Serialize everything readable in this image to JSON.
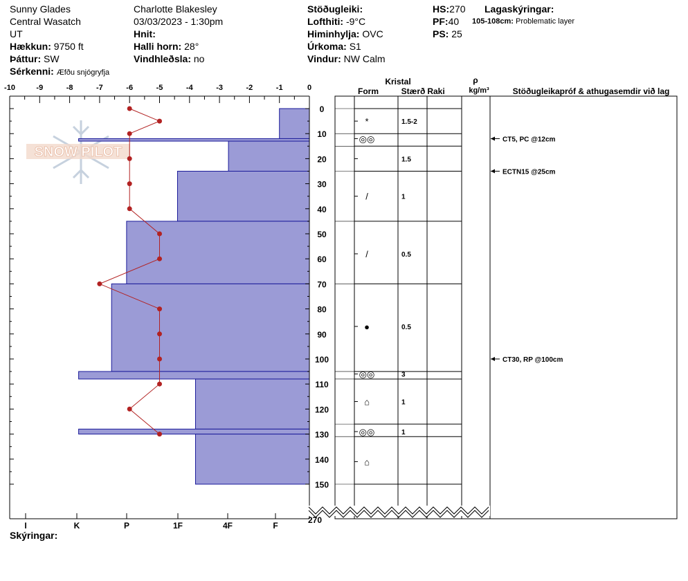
{
  "header": {
    "location": "Sunny Glades",
    "range": "Central Wasatch",
    "state": "UT",
    "elevation_label": "Hækkun:",
    "elevation_value": "9750 ft",
    "aspect_label": "Þáttur:",
    "aspect_value": "SW",
    "feature_label": "Sérkenni:",
    "feature_value": "Æfðu snjógryfja",
    "observer": "Charlotte Blakesley",
    "datetime": "03/03/2023 - 1:30pm",
    "coords_label": "Hnit:",
    "coords_value": "",
    "slope_label": "Halli horn:",
    "slope_value": "28°",
    "wind_loading_label": "Vindhleðsla:",
    "wind_loading_value": "no",
    "stability_label": "Stöðugleiki:",
    "stability_value": "",
    "air_temp_label": "Lofthiti:",
    "air_temp_value": "-9°C",
    "sky_label": "Himinhylja:",
    "sky_value": "OVC",
    "precip_label": "Úrkoma:",
    "precip_value": "S1",
    "wind_label": "Vindur:",
    "wind_value": "NW Calm",
    "hs_label": "HS:",
    "hs_value": "270",
    "pf_label": "PF:",
    "pf_value": "40",
    "ps_label": "PS:",
    "ps_value": "25",
    "layer_notes_label": "Lagaskýringar:",
    "layer_note_range": "105-108cm:",
    "layer_note_text": "Problematic layer",
    "notes_label": "Skýringar:"
  },
  "columns": {
    "crystal": "Kristal",
    "form": "Form",
    "size": "Stærð",
    "moisture": "Raki",
    "rho": "ρ",
    "density_unit": "kg/m³",
    "tests": "Stöðugleikapróf & athugasemdir við lag"
  },
  "watermark": "SNOW PILOT",
  "colors": {
    "hardness_fill": "#9b9bd6",
    "hardness_stroke": "#1a1a99",
    "temp_line": "#b22222"
  },
  "chart_data": {
    "type": "snow-profile",
    "depth_axis": {
      "min": 0,
      "max": 150,
      "ticks": [
        0,
        10,
        20,
        30,
        40,
        50,
        60,
        70,
        80,
        90,
        100,
        110,
        120,
        130,
        140,
        150
      ],
      "bottom_label": "270"
    },
    "temp_axis": {
      "min": -10,
      "max": 0,
      "ticks": [
        "-10",
        "-9",
        "-8",
        "-7",
        "-6",
        "-5",
        "-4",
        "-3",
        "-2",
        "-1",
        "0"
      ]
    },
    "hardness_axis": [
      "I",
      "K",
      "P",
      "1F",
      "4F",
      "F"
    ],
    "hardness_layers": [
      {
        "top": 0,
        "bottom": 12,
        "hardness": -1
      },
      {
        "top": 12,
        "bottom": 13,
        "hardness": -7.7
      },
      {
        "top": 13,
        "bottom": 25,
        "hardness": -2.7
      },
      {
        "top": 25,
        "bottom": 45,
        "hardness": -4.4
      },
      {
        "top": 45,
        "bottom": 70,
        "hardness": -6.1
      },
      {
        "top": 70,
        "bottom": 105,
        "hardness": -6.6
      },
      {
        "top": 105,
        "bottom": 108,
        "hardness": -7.7
      },
      {
        "top": 108,
        "bottom": 128,
        "hardness": -3.8
      },
      {
        "top": 128,
        "bottom": 130,
        "hardness": -7.7
      },
      {
        "top": 130,
        "bottom": 150,
        "hardness": -3.8
      }
    ],
    "temperature_profile": [
      {
        "depth": 0,
        "temp": -6
      },
      {
        "depth": 5,
        "temp": -5
      },
      {
        "depth": 10,
        "temp": -6
      },
      {
        "depth": 20,
        "temp": -6
      },
      {
        "depth": 30,
        "temp": -6
      },
      {
        "depth": 40,
        "temp": -6
      },
      {
        "depth": 50,
        "temp": -5
      },
      {
        "depth": 60,
        "temp": -5
      },
      {
        "depth": 70,
        "temp": -7
      },
      {
        "depth": 80,
        "temp": -5
      },
      {
        "depth": 90,
        "temp": -5
      },
      {
        "depth": 100,
        "temp": -5
      },
      {
        "depth": 110,
        "temp": -5
      },
      {
        "depth": 120,
        "temp": -6
      },
      {
        "depth": 130,
        "temp": -5
      }
    ],
    "layer_boundaries": [
      0,
      10,
      15,
      25,
      45,
      70,
      105,
      108,
      126,
      131,
      150
    ],
    "layer_details": [
      {
        "depth": 5,
        "form": "*",
        "size": "1.5-2"
      },
      {
        "depth": 12,
        "form": "◎◎",
        "size": ""
      },
      {
        "depth": 20,
        "form": "",
        "size": "1.5"
      },
      {
        "depth": 35,
        "form": "/",
        "size": "1"
      },
      {
        "depth": 58,
        "form": "/",
        "size": "0.5"
      },
      {
        "depth": 87,
        "form": "●",
        "size": "0.5"
      },
      {
        "depth": 106,
        "form": "◎◎",
        "size": "3"
      },
      {
        "depth": 117,
        "form": "⌂",
        "size": "1"
      },
      {
        "depth": 129,
        "form": "◎◎",
        "size": "1"
      },
      {
        "depth": 141,
        "form": "⌂",
        "size": ""
      }
    ],
    "stability_tests": [
      {
        "depth": 12,
        "text": "CT5, PC @12cm"
      },
      {
        "depth": 25,
        "text": "ECTN15 @25cm"
      },
      {
        "depth": 100,
        "text": "CT30, RP @100cm"
      }
    ]
  }
}
